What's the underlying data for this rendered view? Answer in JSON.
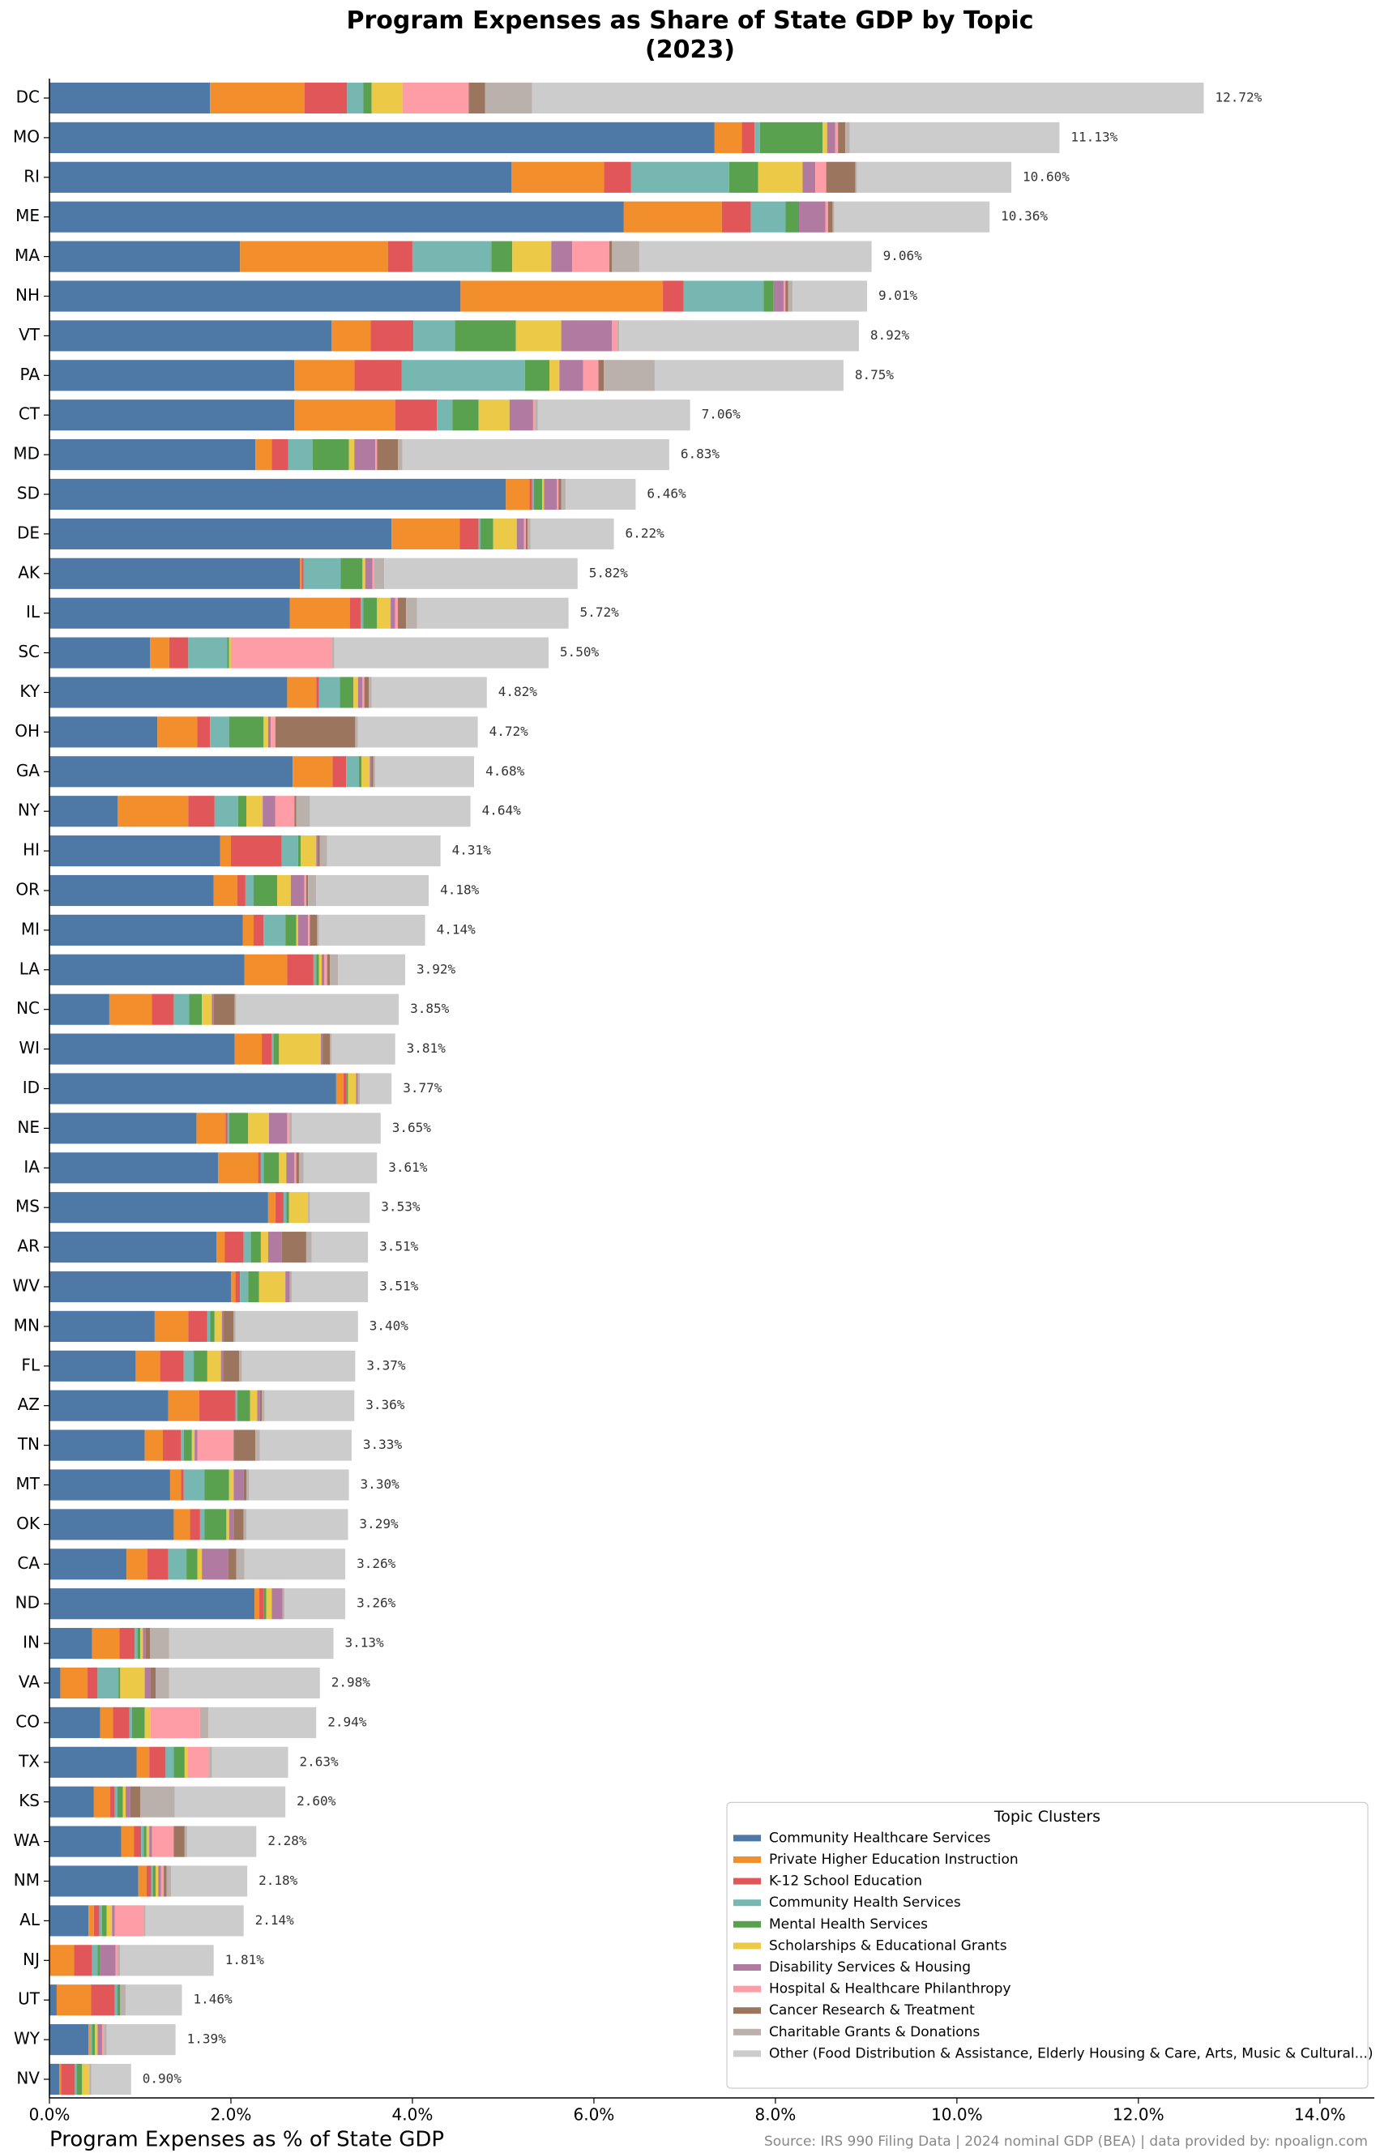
{
  "chart_data": {
    "type": "stacked_bar_horizontal",
    "title": "Program Expenses as Share of State GDP by Topic\n(2023)",
    "x_label": "Program Expenses as % of State GDP",
    "source": "Source: IRS 990 Filing Data  |  2024 nominal GDP (BEA)  |  data provided by: npoalign.com",
    "legend_title": "Topic Clusters",
    "legend": "lower right",
    "grid": false,
    "xlim": [
      0,
      14.6
    ],
    "xticks": [
      {
        "value": 0,
        "label": "0.0%"
      },
      {
        "value": 2,
        "label": "2.0%"
      },
      {
        "value": 4,
        "label": "4.0%"
      },
      {
        "value": 6,
        "label": "6.0%"
      },
      {
        "value": 8,
        "label": "8.0%"
      },
      {
        "value": 10,
        "label": "10.0%"
      },
      {
        "value": 12,
        "label": "12.0%"
      },
      {
        "value": 14,
        "label": "14.0%"
      }
    ],
    "categories": [
      "DC",
      "MO",
      "RI",
      "ME",
      "MA",
      "NH",
      "VT",
      "PA",
      "CT",
      "MD",
      "SD",
      "DE",
      "AK",
      "IL",
      "SC",
      "KY",
      "OH",
      "GA",
      "NY",
      "HI",
      "OR",
      "MI",
      "LA",
      "NC",
      "WI",
      "ID",
      "NE",
      "IA",
      "MS",
      "AR",
      "WV",
      "MN",
      "FL",
      "AZ",
      "TN",
      "MT",
      "OK",
      "CA",
      "ND",
      "IN",
      "VA",
      "CO",
      "TX",
      "KS",
      "WA",
      "NM",
      "AL",
      "NJ",
      "UT",
      "WY",
      "NV"
    ],
    "series": [
      {
        "name": "Community Healthcare Services",
        "color": "#4e79a7",
        "values": [
          1.77,
          7.33,
          5.09,
          6.33,
          2.1,
          4.53,
          3.11,
          2.7,
          2.7,
          2.27,
          5.03,
          3.77,
          2.76,
          2.65,
          1.11,
          2.62,
          1.19,
          2.68,
          0.75,
          1.88,
          1.81,
          2.13,
          2.15,
          0.66,
          2.04,
          3.16,
          1.62,
          1.86,
          2.41,
          1.84,
          2.0,
          1.16,
          0.95,
          1.31,
          1.05,
          1.33,
          1.37,
          0.85,
          2.26,
          0.47,
          0.12,
          0.56,
          0.96,
          0.49,
          0.79,
          0.98,
          0.43,
          0,
          0.08,
          0.43,
          0.11
        ]
      },
      {
        "name": "Private Higher Education Instruction",
        "color": "#f28e2b",
        "values": [
          1.04,
          0.3,
          1.02,
          1.08,
          1.63,
          2.23,
          0.43,
          0.66,
          1.11,
          0.18,
          0.26,
          0.75,
          0.02,
          0.66,
          0.21,
          0.32,
          0.44,
          0.44,
          0.78,
          0.12,
          0.26,
          0.12,
          0.47,
          0.47,
          0.3,
          0.08,
          0.32,
          0.44,
          0.08,
          0.09,
          0.05,
          0.37,
          0.27,
          0.34,
          0.2,
          0.12,
          0.18,
          0.23,
          0.05,
          0.3,
          0.3,
          0.14,
          0.14,
          0.18,
          0.14,
          0.09,
          0.06,
          0.27,
          0.38,
          0.02,
          0.02
        ]
      },
      {
        "name": "K-12 School Education",
        "color": "#e15759",
        "values": [
          0.47,
          0.14,
          0.3,
          0.32,
          0.27,
          0.23,
          0.47,
          0.52,
          0.46,
          0.18,
          0.03,
          0.21,
          0.02,
          0.12,
          0.21,
          0.03,
          0.14,
          0.15,
          0.29,
          0.56,
          0.09,
          0.11,
          0.29,
          0.24,
          0.11,
          0.03,
          0.02,
          0.03,
          0.09,
          0.21,
          0.05,
          0.21,
          0.26,
          0.4,
          0.2,
          0.03,
          0.11,
          0.23,
          0.05,
          0.17,
          0.11,
          0.18,
          0.18,
          0.05,
          0.08,
          0.05,
          0.06,
          0.2,
          0.26,
          0,
          0.15
        ]
      },
      {
        "name": "Community Health Services",
        "color": "#76b7b2",
        "values": [
          0.18,
          0.06,
          1.08,
          0.38,
          0.87,
          0.88,
          0.46,
          1.36,
          0.17,
          0.27,
          0.02,
          0.02,
          0.41,
          0.03,
          0.43,
          0.23,
          0.21,
          0.14,
          0.26,
          0.18,
          0.09,
          0.24,
          0.03,
          0.17,
          0.02,
          0,
          0.02,
          0.03,
          0.03,
          0.08,
          0.09,
          0.03,
          0.11,
          0.02,
          0.03,
          0.23,
          0.05,
          0.2,
          0,
          0.03,
          0.23,
          0.03,
          0.09,
          0.03,
          0.03,
          0.02,
          0.03,
          0.06,
          0.03,
          0.02,
          0.02
        ]
      },
      {
        "name": "Mental Health Services",
        "color": "#59a14f",
        "values": [
          0.09,
          0.69,
          0.32,
          0.15,
          0.23,
          0.11,
          0.67,
          0.27,
          0.29,
          0.4,
          0.09,
          0.14,
          0.24,
          0.15,
          0.02,
          0.15,
          0.38,
          0.03,
          0.09,
          0.03,
          0.26,
          0.12,
          0.03,
          0.14,
          0.06,
          0.02,
          0.21,
          0.17,
          0.03,
          0.11,
          0.12,
          0.05,
          0.15,
          0.14,
          0.09,
          0.27,
          0.24,
          0.12,
          0.03,
          0.03,
          0.02,
          0.14,
          0.12,
          0.06,
          0.03,
          0.03,
          0.05,
          0.03,
          0.03,
          0.03,
          0.06
        ]
      },
      {
        "name": "Scholarships & Educational Grants",
        "color": "#edc948",
        "values": [
          0.34,
          0.05,
          0.49,
          0,
          0.43,
          0,
          0.5,
          0.11,
          0.34,
          0.06,
          0.02,
          0.26,
          0.03,
          0.15,
          0.02,
          0.05,
          0.05,
          0.09,
          0.18,
          0.17,
          0.15,
          0.02,
          0.03,
          0.11,
          0.46,
          0.09,
          0.23,
          0.08,
          0.21,
          0.08,
          0.29,
          0.08,
          0.15,
          0.08,
          0.03,
          0.05,
          0.03,
          0.05,
          0.06,
          0.03,
          0.27,
          0.06,
          0.03,
          0.03,
          0.03,
          0.03,
          0.06,
          0,
          0,
          0.03,
          0.08
        ]
      },
      {
        "name": "Disability Services & Housing",
        "color": "#b07aa1",
        "values": [
          0,
          0.09,
          0.14,
          0.29,
          0.23,
          0.11,
          0.56,
          0.26,
          0.26,
          0.23,
          0.14,
          0.08,
          0.08,
          0.05,
          0,
          0.05,
          0.03,
          0.02,
          0.14,
          0.02,
          0.15,
          0.11,
          0.03,
          0.02,
          0.02,
          0.02,
          0.2,
          0.09,
          0,
          0.15,
          0.05,
          0.02,
          0.03,
          0.03,
          0.03,
          0.11,
          0.05,
          0.29,
          0.12,
          0.03,
          0.06,
          0,
          0,
          0.05,
          0.03,
          0.03,
          0.03,
          0.17,
          0,
          0.05,
          0
        ]
      },
      {
        "name": "Hospital & Healthcare Philanthropy",
        "color": "#ff9da7",
        "values": [
          0.73,
          0.03,
          0.12,
          0.03,
          0.41,
          0.02,
          0.06,
          0.17,
          0.02,
          0.02,
          0.02,
          0.02,
          0.02,
          0.03,
          1.11,
          0.02,
          0.05,
          0,
          0.21,
          0,
          0.02,
          0.02,
          0.03,
          0,
          0,
          0,
          0.02,
          0.02,
          0,
          0,
          0,
          0,
          0,
          0,
          0.4,
          0,
          0,
          0,
          0,
          0,
          0,
          0.55,
          0.24,
          0,
          0.24,
          0.03,
          0.32,
          0.02,
          0,
          0.02,
          0
        ]
      },
      {
        "name": "Cancer Research & Treatment",
        "color": "#9c755f",
        "values": [
          0.18,
          0.08,
          0.32,
          0.05,
          0.03,
          0.03,
          0,
          0.06,
          0,
          0.23,
          0.03,
          0.02,
          0,
          0.09,
          0,
          0.05,
          0.88,
          0.02,
          0.02,
          0.02,
          0.02,
          0.08,
          0.03,
          0.23,
          0.08,
          0,
          0,
          0.03,
          0,
          0.27,
          0,
          0.11,
          0.17,
          0.02,
          0.24,
          0.03,
          0.11,
          0.09,
          0,
          0.05,
          0.06,
          0,
          0,
          0.11,
          0.12,
          0.03,
          0,
          0,
          0,
          0,
          0
        ]
      },
      {
        "name": "Charitable Grants & Donations",
        "color": "#bab0ac",
        "values": [
          0.52,
          0.05,
          0.02,
          0.02,
          0.3,
          0.05,
          0.02,
          0.56,
          0.03,
          0.05,
          0.05,
          0.03,
          0.11,
          0.12,
          0.03,
          0.03,
          0.03,
          0.02,
          0.15,
          0.08,
          0.09,
          0.02,
          0.09,
          0.02,
          0.02,
          0.02,
          0.03,
          0.05,
          0.02,
          0.06,
          0.02,
          0.02,
          0.03,
          0.03,
          0.05,
          0.03,
          0.03,
          0.09,
          0.02,
          0.21,
          0.15,
          0.09,
          0.03,
          0.38,
          0.03,
          0.05,
          0.02,
          0.03,
          0.06,
          0.03,
          0.02
        ]
      },
      {
        "name": "Other (Food Distribution & Assistance, Elderly Housing & Care, Arts, Music & Cultural...)",
        "color": "#cccccc",
        "values": [
          7.4,
          2.31,
          1.7,
          1.71,
          2.56,
          0.82,
          2.64,
          2.08,
          1.68,
          2.94,
          0.77,
          0.92,
          2.13,
          1.67,
          2.36,
          1.27,
          1.32,
          1.09,
          1.77,
          1.25,
          1.24,
          1.17,
          0.74,
          1.79,
          0.7,
          0.35,
          0.98,
          0.81,
          0.66,
          0.62,
          0.84,
          1.35,
          1.25,
          0.99,
          1.01,
          1.1,
          1.12,
          1.11,
          0.67,
          1.81,
          1.66,
          1.19,
          0.84,
          1.22,
          0.76,
          0.84,
          1.08,
          1.03,
          0.62,
          0.76,
          0.44
        ]
      }
    ],
    "totals": {
      "values": [
        12.72,
        11.13,
        10.6,
        10.36,
        9.06,
        9.01,
        8.92,
        8.75,
        7.06,
        6.83,
        6.46,
        6.22,
        5.82,
        5.72,
        5.5,
        4.82,
        4.72,
        4.68,
        4.64,
        4.31,
        4.18,
        4.14,
        3.92,
        3.85,
        3.81,
        3.77,
        3.65,
        3.61,
        3.53,
        3.51,
        3.51,
        3.4,
        3.37,
        3.36,
        3.33,
        3.3,
        3.29,
        3.26,
        3.26,
        3.13,
        2.98,
        2.94,
        2.63,
        2.6,
        2.28,
        2.18,
        2.14,
        1.81,
        1.46,
        1.39,
        0.9
      ],
      "value_labels": [
        "12.72%",
        "11.13%",
        "10.60%",
        "10.36%",
        "9.06%",
        "9.01%",
        "8.92%",
        "8.75%",
        "7.06%",
        "6.83%",
        "6.46%",
        "6.22%",
        "5.82%",
        "5.72%",
        "5.50%",
        "4.82%",
        "4.72%",
        "4.68%",
        "4.64%",
        "4.31%",
        "4.18%",
        "4.14%",
        "3.92%",
        "3.85%",
        "3.81%",
        "3.77%",
        "3.65%",
        "3.61%",
        "3.53%",
        "3.51%",
        "3.51%",
        "3.40%",
        "3.37%",
        "3.36%",
        "3.33%",
        "3.30%",
        "3.29%",
        "3.26%",
        "3.26%",
        "3.13%",
        "2.98%",
        "2.94%",
        "2.63%",
        "2.60%",
        "2.28%",
        "2.18%",
        "2.14%",
        "1.81%",
        "1.46%",
        "1.39%",
        "0.90%"
      ]
    }
  }
}
